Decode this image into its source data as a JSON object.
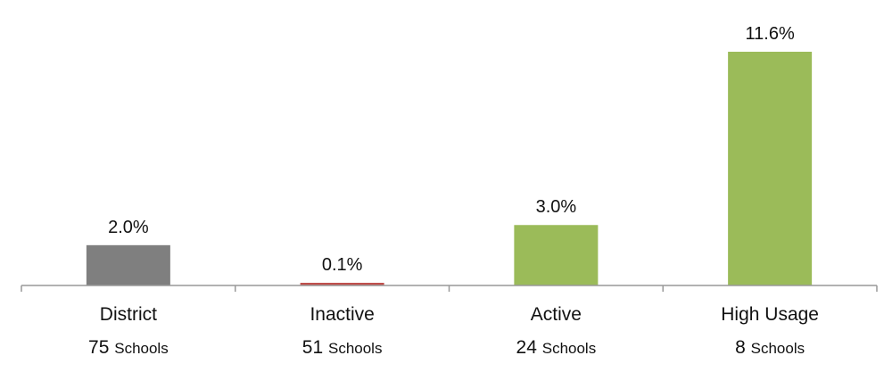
{
  "chart_data": {
    "type": "bar",
    "categories": [
      "District",
      "Inactive",
      "Active",
      "High Usage"
    ],
    "values": [
      2.0,
      0.1,
      3.0,
      11.6
    ],
    "value_labels": [
      "2.0%",
      "0.1%",
      "3.0%",
      "11.6%"
    ],
    "school_counts": [
      "75",
      "51",
      "24",
      "8"
    ],
    "school_word": "Schools",
    "colors": [
      "#7f7f7f",
      "#c0504d",
      "#9bbb59",
      "#9bbb59"
    ],
    "ylim": [
      0,
      11.6
    ],
    "grid": false,
    "legend": "none",
    "title": "",
    "xlabel": "",
    "ylabel": ""
  }
}
